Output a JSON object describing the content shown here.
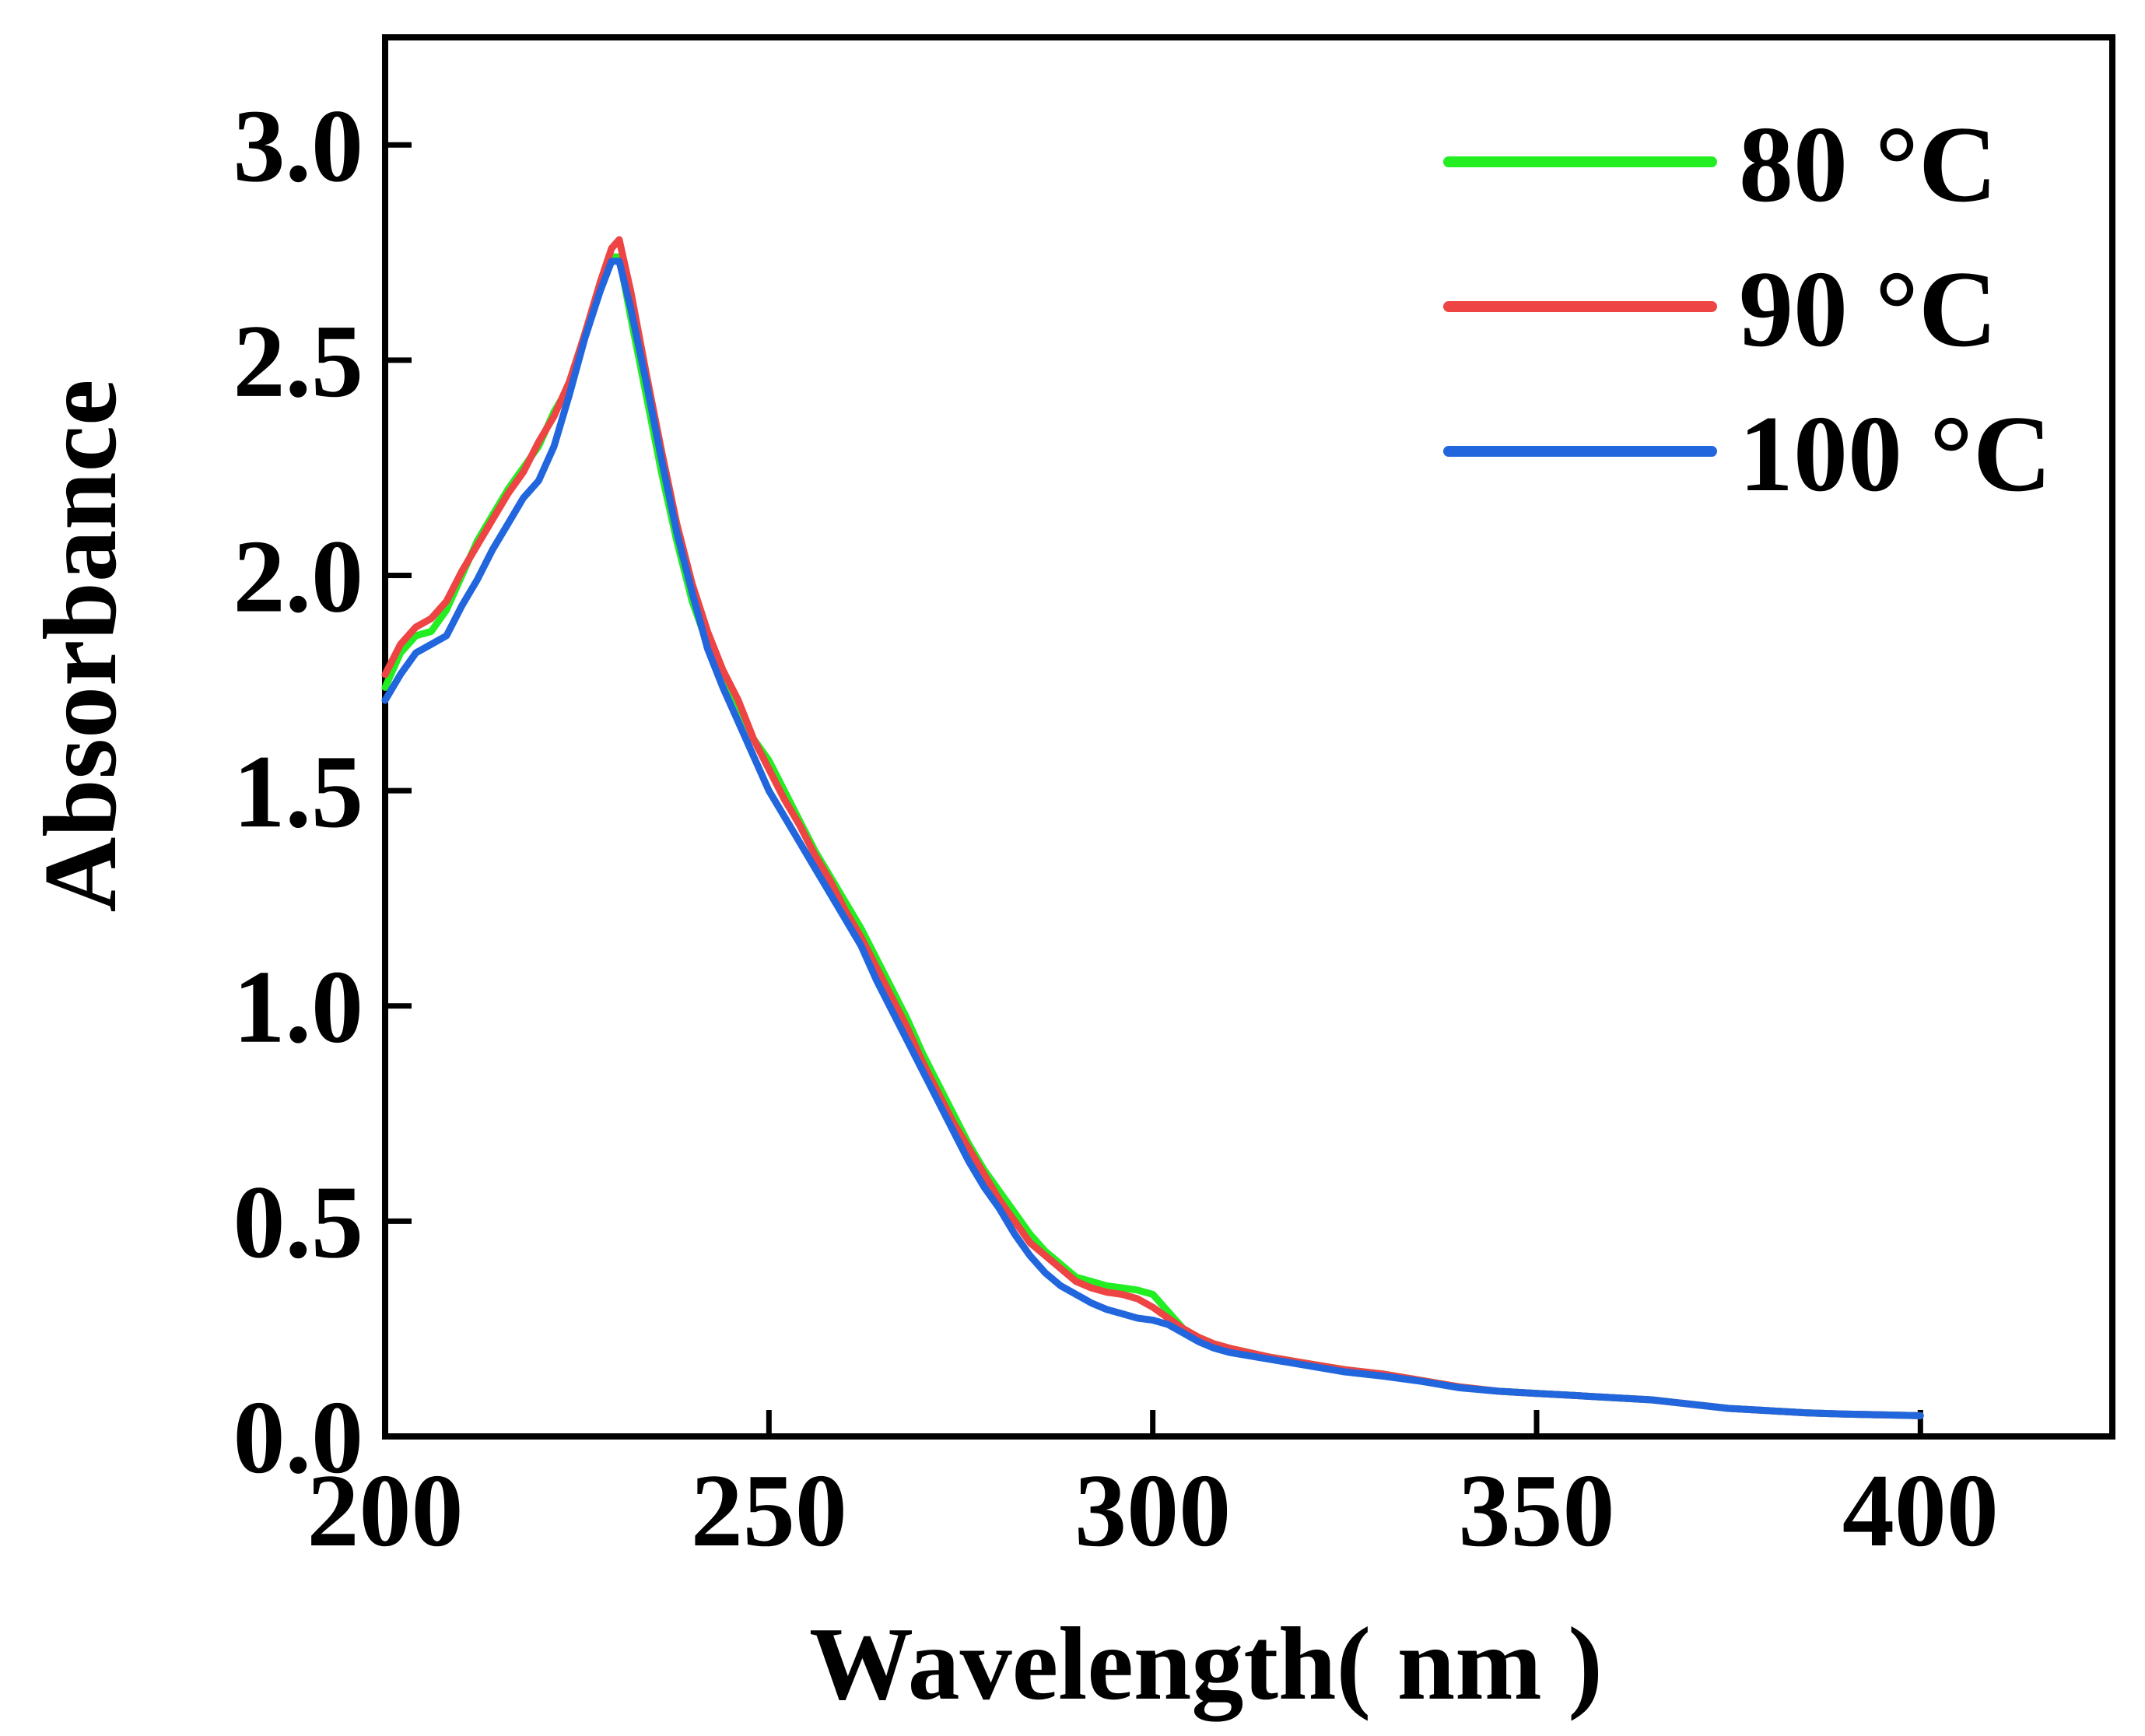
{
  "chart_data": {
    "type": "line",
    "title": "",
    "xlabel": "Wavelength( nm )",
    "ylabel": "Absorbance",
    "xlim": [
      200,
      425
    ],
    "ylim": [
      0,
      3.25
    ],
    "xticks": [
      200,
      250,
      300,
      350,
      400
    ],
    "xtick_labels": [
      "200",
      "250",
      "300",
      "350",
      "400"
    ],
    "yticks": [
      0.0,
      0.5,
      1.0,
      1.5,
      2.0,
      2.5,
      3.0
    ],
    "ytick_labels": [
      "0.0",
      "0.5",
      "1.0",
      "1.5",
      "2.0",
      "2.5",
      "3.0"
    ],
    "grid": false,
    "legend_position": "top-right",
    "series": [
      {
        "name": "80 °C",
        "color": "#22ee22",
        "points": [
          [
            200,
            1.74
          ],
          [
            202,
            1.82
          ],
          [
            204,
            1.86
          ],
          [
            206,
            1.87
          ],
          [
            208,
            1.92
          ],
          [
            210,
            2.0
          ],
          [
            212,
            2.08
          ],
          [
            214,
            2.14
          ],
          [
            216,
            2.2
          ],
          [
            218,
            2.25
          ],
          [
            220,
            2.3
          ],
          [
            222,
            2.38
          ],
          [
            224,
            2.44
          ],
          [
            226,
            2.56
          ],
          [
            228,
            2.66
          ],
          [
            229.5,
            2.74
          ],
          [
            230.5,
            2.74
          ],
          [
            232,
            2.6
          ],
          [
            234,
            2.42
          ],
          [
            236,
            2.24
          ],
          [
            238,
            2.08
          ],
          [
            240,
            1.94
          ],
          [
            242,
            1.84
          ],
          [
            244,
            1.77
          ],
          [
            246,
            1.7
          ],
          [
            248,
            1.62
          ],
          [
            250,
            1.57
          ],
          [
            252,
            1.5
          ],
          [
            254,
            1.43
          ],
          [
            256,
            1.36
          ],
          [
            258,
            1.3
          ],
          [
            260,
            1.24
          ],
          [
            262,
            1.18
          ],
          [
            264,
            1.11
          ],
          [
            266,
            1.04
          ],
          [
            268,
            0.97
          ],
          [
            270,
            0.89
          ],
          [
            272,
            0.82
          ],
          [
            274,
            0.75
          ],
          [
            276,
            0.68
          ],
          [
            278,
            0.62
          ],
          [
            280,
            0.57
          ],
          [
            282,
            0.52
          ],
          [
            284,
            0.47
          ],
          [
            286,
            0.43
          ],
          [
            288,
            0.4
          ],
          [
            290,
            0.37
          ],
          [
            292,
            0.36
          ],
          [
            294,
            0.35
          ],
          [
            296,
            0.345
          ],
          [
            298,
            0.34
          ],
          [
            300,
            0.33
          ],
          [
            302,
            0.29
          ],
          [
            304,
            0.25
          ],
          [
            306,
            0.23
          ],
          [
            308,
            0.215
          ],
          [
            310,
            0.205
          ],
          [
            315,
            0.185
          ],
          [
            320,
            0.17
          ],
          [
            325,
            0.155
          ],
          [
            330,
            0.145
          ],
          [
            335,
            0.13
          ],
          [
            340,
            0.115
          ],
          [
            345,
            0.105
          ],
          [
            350,
            0.1
          ],
          [
            355,
            0.095
          ],
          [
            360,
            0.09
          ],
          [
            365,
            0.085
          ],
          [
            370,
            0.075
          ],
          [
            375,
            0.065
          ],
          [
            380,
            0.06
          ],
          [
            385,
            0.055
          ],
          [
            390,
            0.052
          ],
          [
            395,
            0.05
          ],
          [
            400,
            0.048
          ]
        ]
      },
      {
        "name": "90 °C",
        "color": "#ee4444",
        "points": [
          [
            200,
            1.77
          ],
          [
            202,
            1.84
          ],
          [
            204,
            1.88
          ],
          [
            206,
            1.9
          ],
          [
            208,
            1.94
          ],
          [
            210,
            2.01
          ],
          [
            212,
            2.07
          ],
          [
            214,
            2.13
          ],
          [
            216,
            2.19
          ],
          [
            218,
            2.24
          ],
          [
            220,
            2.31
          ],
          [
            222,
            2.37
          ],
          [
            224,
            2.45
          ],
          [
            226,
            2.56
          ],
          [
            228,
            2.68
          ],
          [
            229.5,
            2.76
          ],
          [
            230.5,
            2.78
          ],
          [
            232,
            2.66
          ],
          [
            234,
            2.47
          ],
          [
            236,
            2.29
          ],
          [
            238,
            2.12
          ],
          [
            240,
            1.98
          ],
          [
            242,
            1.87
          ],
          [
            244,
            1.78
          ],
          [
            246,
            1.71
          ],
          [
            248,
            1.62
          ],
          [
            250,
            1.55
          ],
          [
            252,
            1.48
          ],
          [
            254,
            1.42
          ],
          [
            256,
            1.35
          ],
          [
            258,
            1.29
          ],
          [
            260,
            1.22
          ],
          [
            262,
            1.16
          ],
          [
            264,
            1.09
          ],
          [
            266,
            1.02
          ],
          [
            268,
            0.95
          ],
          [
            270,
            0.87
          ],
          [
            272,
            0.8
          ],
          [
            274,
            0.73
          ],
          [
            276,
            0.67
          ],
          [
            278,
            0.61
          ],
          [
            280,
            0.55
          ],
          [
            282,
            0.5
          ],
          [
            284,
            0.45
          ],
          [
            286,
            0.42
          ],
          [
            288,
            0.39
          ],
          [
            290,
            0.36
          ],
          [
            292,
            0.345
          ],
          [
            294,
            0.335
          ],
          [
            296,
            0.33
          ],
          [
            298,
            0.32
          ],
          [
            300,
            0.3
          ],
          [
            302,
            0.275
          ],
          [
            304,
            0.25
          ],
          [
            306,
            0.23
          ],
          [
            308,
            0.215
          ],
          [
            310,
            0.205
          ],
          [
            315,
            0.185
          ],
          [
            320,
            0.17
          ],
          [
            325,
            0.155
          ],
          [
            330,
            0.145
          ],
          [
            335,
            0.13
          ],
          [
            340,
            0.115
          ],
          [
            345,
            0.105
          ],
          [
            350,
            0.1
          ],
          [
            355,
            0.095
          ],
          [
            360,
            0.09
          ],
          [
            365,
            0.085
          ],
          [
            370,
            0.075
          ],
          [
            375,
            0.065
          ],
          [
            380,
            0.06
          ],
          [
            385,
            0.055
          ],
          [
            390,
            0.052
          ],
          [
            395,
            0.05
          ],
          [
            400,
            0.048
          ]
        ]
      },
      {
        "name": "100 °C",
        "color": "#2266dd",
        "points": [
          [
            200,
            1.71
          ],
          [
            202,
            1.77
          ],
          [
            204,
            1.82
          ],
          [
            206,
            1.84
          ],
          [
            208,
            1.86
          ],
          [
            210,
            1.93
          ],
          [
            212,
            1.99
          ],
          [
            214,
            2.06
          ],
          [
            216,
            2.12
          ],
          [
            218,
            2.18
          ],
          [
            220,
            2.22
          ],
          [
            222,
            2.3
          ],
          [
            224,
            2.42
          ],
          [
            226,
            2.55
          ],
          [
            228,
            2.66
          ],
          [
            229.5,
            2.73
          ],
          [
            230.5,
            2.73
          ],
          [
            232,
            2.62
          ],
          [
            234,
            2.45
          ],
          [
            236,
            2.27
          ],
          [
            238,
            2.1
          ],
          [
            240,
            1.96
          ],
          [
            242,
            1.83
          ],
          [
            244,
            1.74
          ],
          [
            246,
            1.66
          ],
          [
            248,
            1.58
          ],
          [
            250,
            1.5
          ],
          [
            252,
            1.44
          ],
          [
            254,
            1.38
          ],
          [
            256,
            1.32
          ],
          [
            258,
            1.26
          ],
          [
            260,
            1.2
          ],
          [
            262,
            1.14
          ],
          [
            264,
            1.06
          ],
          [
            266,
            0.99
          ],
          [
            268,
            0.92
          ],
          [
            270,
            0.85
          ],
          [
            272,
            0.78
          ],
          [
            274,
            0.71
          ],
          [
            276,
            0.64
          ],
          [
            278,
            0.58
          ],
          [
            280,
            0.53
          ],
          [
            282,
            0.47
          ],
          [
            284,
            0.42
          ],
          [
            286,
            0.38
          ],
          [
            288,
            0.35
          ],
          [
            290,
            0.33
          ],
          [
            292,
            0.31
          ],
          [
            294,
            0.295
          ],
          [
            296,
            0.285
          ],
          [
            298,
            0.275
          ],
          [
            300,
            0.27
          ],
          [
            302,
            0.26
          ],
          [
            304,
            0.24
          ],
          [
            306,
            0.22
          ],
          [
            308,
            0.205
          ],
          [
            310,
            0.195
          ],
          [
            315,
            0.18
          ],
          [
            320,
            0.165
          ],
          [
            325,
            0.15
          ],
          [
            330,
            0.14
          ],
          [
            335,
            0.128
          ],
          [
            340,
            0.113
          ],
          [
            345,
            0.105
          ],
          [
            350,
            0.1
          ],
          [
            355,
            0.095
          ],
          [
            360,
            0.09
          ],
          [
            365,
            0.085
          ],
          [
            370,
            0.075
          ],
          [
            375,
            0.065
          ],
          [
            380,
            0.06
          ],
          [
            385,
            0.055
          ],
          [
            390,
            0.052
          ],
          [
            395,
            0.05
          ],
          [
            400,
            0.048
          ]
        ]
      }
    ]
  }
}
